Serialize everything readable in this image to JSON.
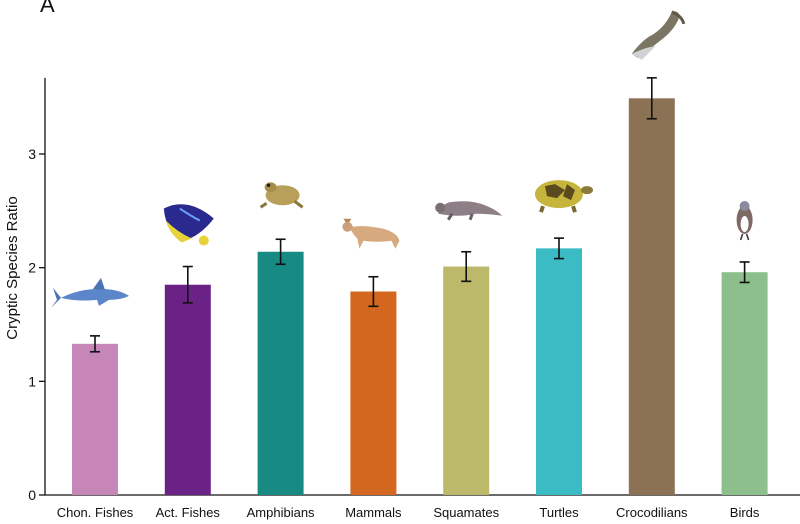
{
  "panel_label": "A",
  "chart_data": {
    "type": "bar",
    "ylabel": "Cryptic Species Ratio",
    "xlabel": "",
    "ylim": [
      0,
      3.67
    ],
    "yticks": [
      0,
      1,
      2,
      3
    ],
    "categories": [
      "Chon. Fishes",
      "Act. Fishes",
      "Amphibians",
      "Mammals",
      "Squamates",
      "Turtles",
      "Crocodilians",
      "Birds"
    ],
    "values": [
      1.33,
      1.85,
      2.14,
      1.79,
      2.01,
      2.17,
      3.49,
      1.96
    ],
    "errors": [
      0.07,
      0.16,
      0.11,
      0.13,
      0.13,
      0.09,
      0.18,
      0.09
    ],
    "colors": [
      "#c786b8",
      "#6a2286",
      "#178a84",
      "#d4671f",
      "#bcb96b",
      "#3bbcc4",
      "#8b7255",
      "#8cbf8c"
    ],
    "icons": [
      "shark-icon",
      "angelfish-icon",
      "frog-icon",
      "wildcat-icon",
      "lizard-icon",
      "tortoise-icon",
      "crocodile-icon",
      "bird-icon"
    ]
  }
}
